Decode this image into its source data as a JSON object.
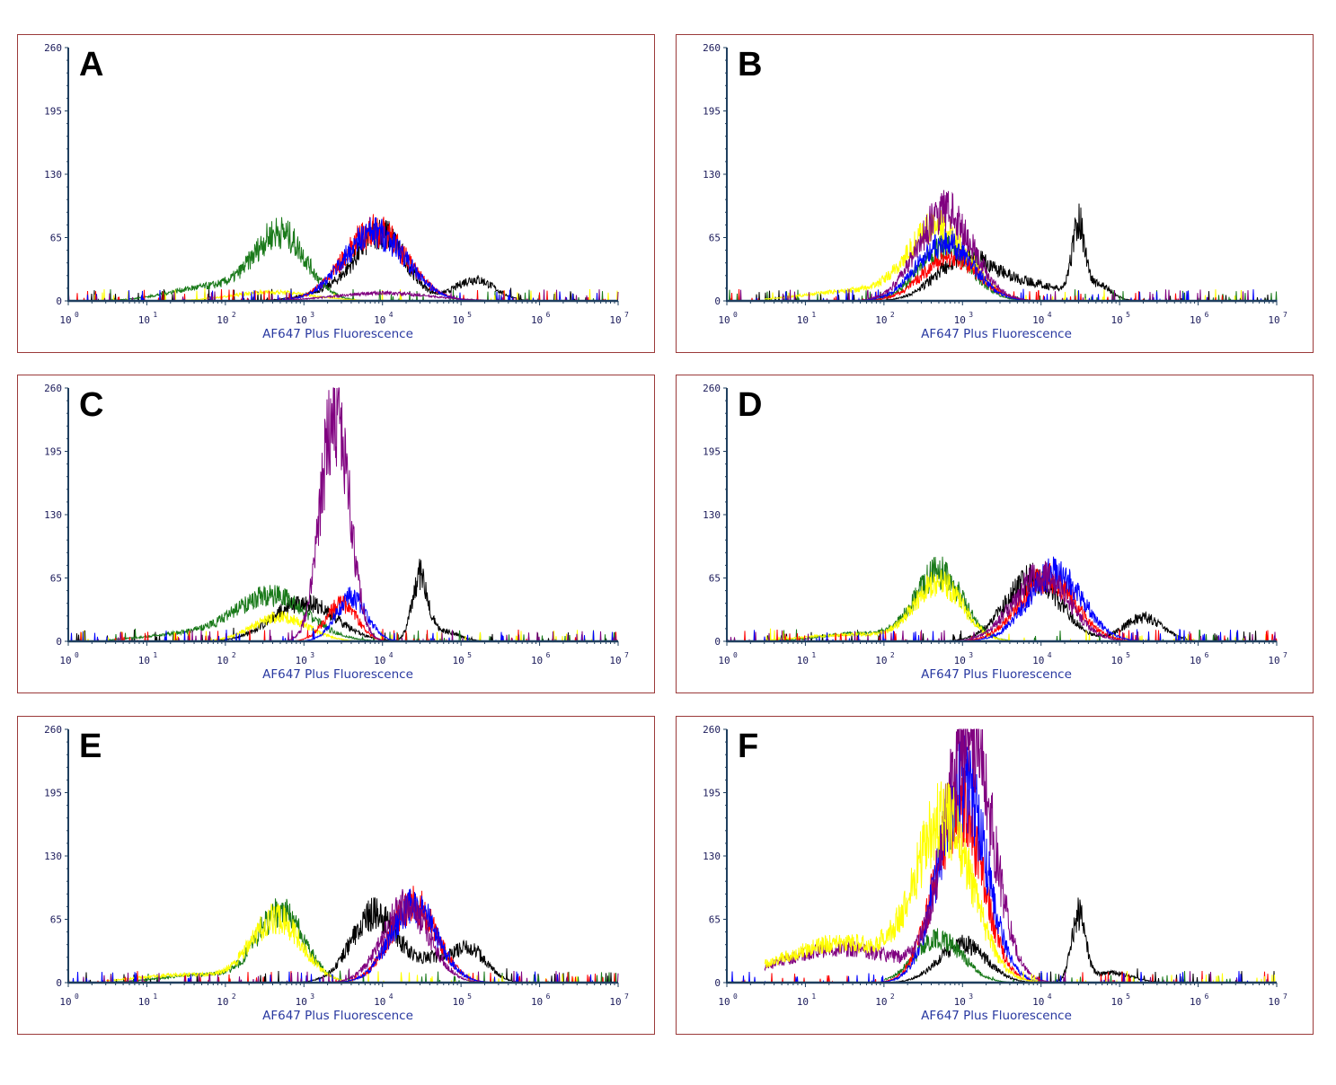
{
  "chart_data": [
    {
      "type": "line",
      "panel_label": "A",
      "xlabel": "AF647 Plus Fluorescence",
      "xscale": "log",
      "xlim": [
        1,
        10000000
      ],
      "ylim": [
        0,
        260
      ],
      "yticks": [
        "0",
        "65",
        "130",
        "195",
        "260"
      ],
      "xticks": [
        "10",
        "10",
        "10",
        "10",
        "10",
        "10",
        "10",
        "10"
      ],
      "xtick_exponents": [
        "0",
        "1",
        "2",
        "3",
        "4",
        "5",
        "6",
        "7"
      ],
      "series": [
        {
          "color": "#000000",
          "peaks": [
            {
              "center": 10000,
              "height": 65,
              "width_decades": 0.3
            },
            {
              "center": 150000,
              "height": 22,
              "width_decades": 0.25
            },
            {
              "center": 3000,
              "height": 12,
              "width_decades": 0.4
            }
          ]
        },
        {
          "color": "#1a7a1a",
          "peaks": [
            {
              "center": 500,
              "height": 68,
              "width_decades": 0.33
            },
            {
              "center": 60,
              "height": 14,
              "width_decades": 0.5
            }
          ],
          "start": 3
        },
        {
          "color": "#ffff00",
          "peaks": [
            {
              "center": 400,
              "height": 9,
              "width_decades": 0.5
            }
          ]
        },
        {
          "color": "#ff0000",
          "peaks": [
            {
              "center": 8000,
              "height": 72,
              "width_decades": 0.4
            }
          ]
        },
        {
          "color": "#0000ff",
          "peaks": [
            {
              "center": 8000,
              "height": 70,
              "width_decades": 0.4
            }
          ]
        },
        {
          "color": "#800080",
          "peaks": [
            {
              "center": 10000,
              "height": 8,
              "width_decades": 0.6
            }
          ]
        }
      ]
    },
    {
      "type": "line",
      "panel_label": "B",
      "xlabel": "AF647 Plus Fluorescence",
      "xscale": "log",
      "xlim": [
        1,
        10000000
      ],
      "ylim": [
        0,
        260
      ],
      "yticks": [
        "0",
        "65",
        "130",
        "195",
        "260"
      ],
      "xticks": [
        "10",
        "10",
        "10",
        "10",
        "10",
        "10",
        "10",
        "10"
      ],
      "xtick_exponents": [
        "0",
        "1",
        "2",
        "3",
        "4",
        "5",
        "6",
        "7"
      ],
      "series": [
        {
          "color": "#000000",
          "peaks": [
            {
              "center": 1000,
              "height": 40,
              "width_decades": 0.35
            },
            {
              "center": 30000,
              "height": 72,
              "width_decades": 0.08
            },
            {
              "center": 6000,
              "height": 18,
              "width_decades": 0.5
            },
            {
              "center": 55000,
              "height": 14,
              "width_decades": 0.15
            }
          ]
        },
        {
          "color": "#1a7a1a",
          "peaks": [
            {
              "center": 600,
              "height": 55,
              "width_decades": 0.33
            }
          ]
        },
        {
          "color": "#ffff00",
          "peaks": [
            {
              "center": 500,
              "height": 75,
              "width_decades": 0.38
            },
            {
              "center": 40,
              "height": 10,
              "width_decades": 0.6
            }
          ],
          "start": 3
        },
        {
          "color": "#ff0000",
          "peaks": [
            {
              "center": 700,
              "height": 45,
              "width_decades": 0.35
            }
          ]
        },
        {
          "color": "#0000ff",
          "peaks": [
            {
              "center": 600,
              "height": 60,
              "width_decades": 0.35
            }
          ]
        },
        {
          "color": "#800080",
          "peaks": [
            {
              "center": 600,
              "height": 92,
              "width_decades": 0.35
            }
          ]
        }
      ]
    },
    {
      "type": "line",
      "panel_label": "C",
      "xlabel": "AF647 Plus Fluorescence",
      "xscale": "log",
      "xlim": [
        1,
        10000000
      ],
      "ylim": [
        0,
        260
      ],
      "yticks": [
        "0",
        "65",
        "130",
        "195",
        "260"
      ],
      "xticks": [
        "10",
        "10",
        "10",
        "10",
        "10",
        "10",
        "10",
        "10"
      ],
      "xtick_exponents": [
        "0",
        "1",
        "2",
        "3",
        "4",
        "5",
        "6",
        "7"
      ],
      "series": [
        {
          "color": "#000000",
          "peaks": [
            {
              "center": 1000,
              "height": 40,
              "width_decades": 0.4
            },
            {
              "center": 30000,
              "height": 65,
              "width_decades": 0.1
            },
            {
              "center": 60000,
              "height": 10,
              "width_decades": 0.2
            }
          ]
        },
        {
          "color": "#1a7a1a",
          "peaks": [
            {
              "center": 400,
              "height": 45,
              "width_decades": 0.45
            },
            {
              "center": 40,
              "height": 8,
              "width_decades": 0.6
            }
          ],
          "start": 3
        },
        {
          "color": "#ffff00",
          "peaks": [
            {
              "center": 500,
              "height": 25,
              "width_decades": 0.35
            }
          ]
        },
        {
          "color": "#ff0000",
          "peaks": [
            {
              "center": 3000,
              "height": 38,
              "width_decades": 0.2
            }
          ]
        },
        {
          "color": "#0000ff",
          "peaks": [
            {
              "center": 4000,
              "height": 45,
              "width_decades": 0.2
            }
          ]
        },
        {
          "color": "#800080",
          "peaks": [
            {
              "center": 2500,
              "height": 240,
              "width_decades": 0.18
            }
          ]
        }
      ]
    },
    {
      "type": "line",
      "panel_label": "D",
      "xlabel": "AF647 Plus Fluorescence",
      "xscale": "log",
      "xlim": [
        1,
        10000000
      ],
      "ylim": [
        0,
        260
      ],
      "yticks": [
        "0",
        "65",
        "130",
        "195",
        "260"
      ],
      "xticks": [
        "10",
        "10",
        "10",
        "10",
        "10",
        "10",
        "10",
        "10"
      ],
      "xtick_exponents": [
        "0",
        "1",
        "2",
        "3",
        "4",
        "5",
        "6",
        "7"
      ],
      "series": [
        {
          "color": "#000000",
          "peaks": [
            {
              "center": 8000,
              "height": 65,
              "width_decades": 0.35
            },
            {
              "center": 200000,
              "height": 24,
              "width_decades": 0.25
            }
          ]
        },
        {
          "color": "#1a7a1a",
          "peaks": [
            {
              "center": 500,
              "height": 70,
              "width_decades": 0.3
            },
            {
              "center": 50,
              "height": 8,
              "width_decades": 0.5
            }
          ],
          "start": 3
        },
        {
          "color": "#ffff00",
          "peaks": [
            {
              "center": 500,
              "height": 60,
              "width_decades": 0.3
            },
            {
              "center": 40,
              "height": 7,
              "width_decades": 0.6
            }
          ],
          "start": 3
        },
        {
          "color": "#ff0000",
          "peaks": [
            {
              "center": 12000,
              "height": 65,
              "width_decades": 0.35
            }
          ]
        },
        {
          "color": "#0000ff",
          "peaks": [
            {
              "center": 15000,
              "height": 70,
              "width_decades": 0.35
            }
          ]
        },
        {
          "color": "#800080",
          "peaks": [
            {
              "center": 10000,
              "height": 68,
              "width_decades": 0.35
            }
          ]
        }
      ]
    },
    {
      "type": "line",
      "panel_label": "E",
      "xlabel": "AF647 Plus Fluorescence",
      "xscale": "log",
      "xlim": [
        1,
        10000000
      ],
      "ylim": [
        0,
        260
      ],
      "yticks": [
        "0",
        "65",
        "130",
        "195",
        "260"
      ],
      "xticks": [
        "10",
        "10",
        "10",
        "10",
        "10",
        "10",
        "10",
        "10"
      ],
      "xtick_exponents": [
        "0",
        "1",
        "2",
        "3",
        "4",
        "5",
        "6",
        "7"
      ],
      "series": [
        {
          "color": "#000000",
          "peaks": [
            {
              "center": 8000,
              "height": 70,
              "width_decades": 0.3
            },
            {
              "center": 150000,
              "height": 22,
              "width_decades": 0.2
            },
            {
              "center": 60000,
              "height": 25,
              "width_decades": 0.3
            }
          ]
        },
        {
          "color": "#1a7a1a",
          "peaks": [
            {
              "center": 500,
              "height": 72,
              "width_decades": 0.3
            },
            {
              "center": 50,
              "height": 8,
              "width_decades": 0.5
            }
          ],
          "start": 3
        },
        {
          "color": "#ffff00",
          "peaks": [
            {
              "center": 450,
              "height": 65,
              "width_decades": 0.32
            },
            {
              "center": 30,
              "height": 8,
              "width_decades": 0.6
            }
          ],
          "start": 3
        },
        {
          "color": "#ff0000",
          "peaks": [
            {
              "center": 25000,
              "height": 80,
              "width_decades": 0.3
            }
          ]
        },
        {
          "color": "#0000ff",
          "peaks": [
            {
              "center": 25000,
              "height": 78,
              "width_decades": 0.3
            }
          ]
        },
        {
          "color": "#800080",
          "peaks": [
            {
              "center": 20000,
              "height": 78,
              "width_decades": 0.3
            }
          ]
        }
      ]
    },
    {
      "type": "line",
      "panel_label": "F",
      "xlabel": "AF647 Plus Fluorescence",
      "xscale": "log",
      "xlim": [
        1,
        10000000
      ],
      "ylim": [
        0,
        260
      ],
      "yticks": [
        "0",
        "65",
        "130",
        "195",
        "260"
      ],
      "xticks": [
        "10",
        "10",
        "10",
        "10",
        "10",
        "10",
        "10",
        "10"
      ],
      "xtick_exponents": [
        "0",
        "1",
        "2",
        "3",
        "4",
        "5",
        "6",
        "7"
      ],
      "series": [
        {
          "color": "#000000",
          "peaks": [
            {
              "center": 1000,
              "height": 40,
              "width_decades": 0.3
            },
            {
              "center": 30000,
              "height": 68,
              "width_decades": 0.09
            },
            {
              "center": 80000,
              "height": 10,
              "width_decades": 0.25
            }
          ],
          "start": 100
        },
        {
          "color": "#1a7a1a",
          "peaks": [
            {
              "center": 500,
              "height": 45,
              "width_decades": 0.3
            }
          ],
          "start": 100
        },
        {
          "color": "#ff0000",
          "peaks": [
            {
              "center": 900,
              "height": 180,
              "width_decades": 0.3
            }
          ]
        },
        {
          "color": "#0000ff",
          "peaks": [
            {
              "center": 1000,
              "height": 205,
              "width_decades": 0.3
            }
          ]
        },
        {
          "color": "#800080",
          "peaks": [
            {
              "center": 1200,
              "height": 255,
              "width_decades": 0.3
            },
            {
              "center": 30,
              "height": 35,
              "width_decades": 0.8
            }
          ],
          "start": 3
        },
        {
          "color": "#ffff00",
          "peaks": [
            {
              "center": 600,
              "height": 160,
              "width_decades": 0.35
            },
            {
              "center": 30,
              "height": 40,
              "width_decades": 0.8
            }
          ],
          "start": 3
        }
      ]
    }
  ]
}
